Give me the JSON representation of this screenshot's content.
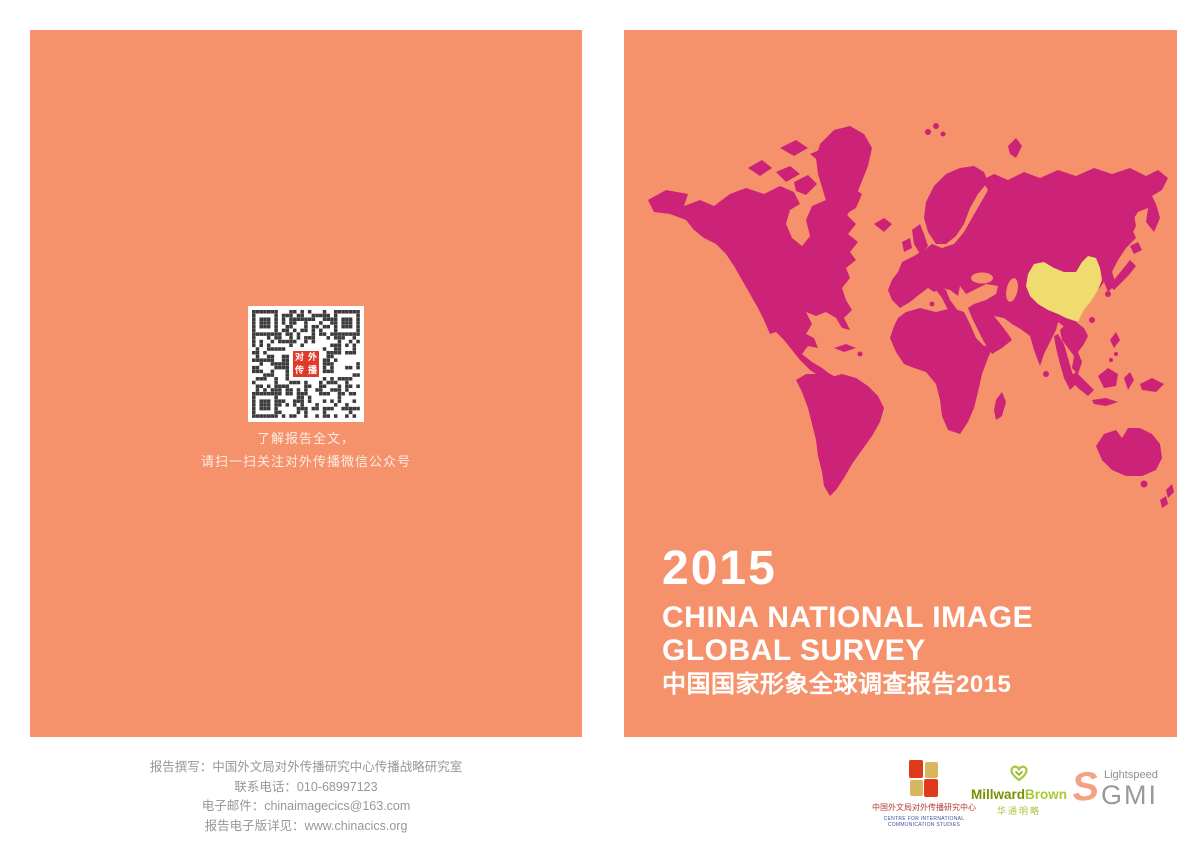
{
  "document": {
    "title_year": "2015",
    "title_en_line1": "CHINA NATIONAL IMAGE",
    "title_en_line2": "GLOBAL SURVEY",
    "title_cn": "中国国家形象全球调查报告2015"
  },
  "back_cover": {
    "qr_caption_line1": "了解报告全文，",
    "qr_caption_line2": "请扫一扫关注对外传播微信公众号",
    "qr_center_chars": [
      "对",
      "外",
      "传",
      "播"
    ]
  },
  "map": {
    "highlighted_country": "China"
  },
  "contact": {
    "lines": [
      "报告撰写：中国外文局对外传播研究中心传播战略研究室",
      "联系电话：010-68997123",
      "电子邮件：chinaimagecics@163.com",
      "报告电子版详见：www.chinacics.org"
    ]
  },
  "logos": {
    "cics": {
      "cn": "中国外文局对外传播研究中心",
      "en_line1": "CENTRE FOR INTERNATIONAL",
      "en_line2": "COMMUNICATION STUDIES"
    },
    "millward_brown": {
      "part1": "Millward",
      "part2": "Brown",
      "cn": "华通明略"
    },
    "lightspeed_gmi": {
      "swoosh": "S",
      "line1": "Lightspeed",
      "line2": "GMI"
    }
  },
  "colors": {
    "panel": "#F6926B",
    "map_land": "#CC2278",
    "map_china": "#F0DC6E",
    "qr_dark": "#3B3B3B",
    "qr_logo_red": "#E03A2A",
    "footer_text": "#979797",
    "cics_red": "#DE3A1B",
    "cics_gold": "#D9B660",
    "mb_dark_green": "#7C8F00",
    "mb_light_green": "#A9C838",
    "ls_orange": "#F5A183",
    "ls_gray": "#8D9193",
    "title_text": "#FFFFFF"
  }
}
